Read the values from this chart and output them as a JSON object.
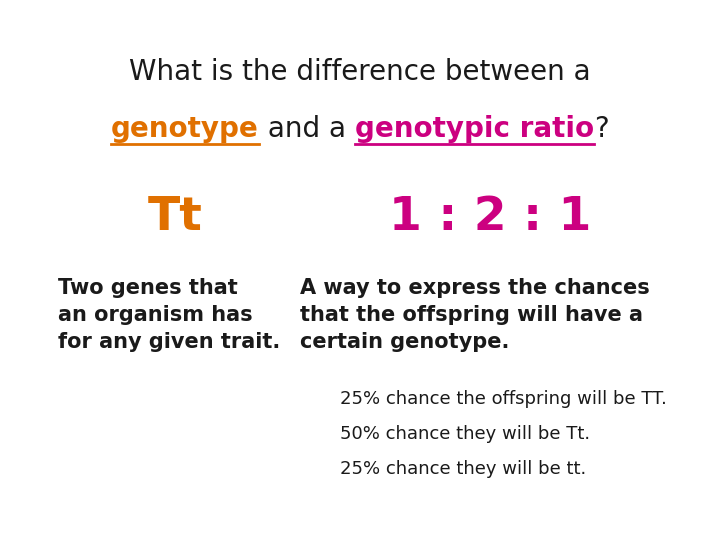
{
  "background_color": "#ffffff",
  "title_line1": "What is the difference between a",
  "title_line1_color": "#1a1a1a",
  "genotype_word": "genotype",
  "genotype_color": "#e07000",
  "and_a_text": " and a ",
  "genotypic_ratio_word": "genotypic ratio",
  "genotypic_ratio_color": "#cc0080",
  "question_mark": "?",
  "black_color": "#1a1a1a",
  "tt_label": "Tt",
  "tt_color": "#e07000",
  "ratio_label": "1 : 2 : 1",
  "ratio_color": "#cc0080",
  "left_desc_lines": [
    "Two genes that",
    "an organism has",
    "for any given trait."
  ],
  "left_desc_color": "#1a1a1a",
  "right_desc_lines": [
    "A way to express the chances",
    "that the offspring will have a",
    "certain genotype."
  ],
  "right_desc_color": "#1a1a1a",
  "bullets": [
    "25% chance the offspring will be TT.",
    "50% chance they will be Tt.",
    "25% chance they will be tt."
  ],
  "bullet_color": "#1a1a1a",
  "title_fontsize": 20,
  "big_label_fontsize": 34,
  "desc_fontsize": 15,
  "bullet_fontsize": 13,
  "fig_width": 7.2,
  "fig_height": 5.4,
  "dpi": 100
}
